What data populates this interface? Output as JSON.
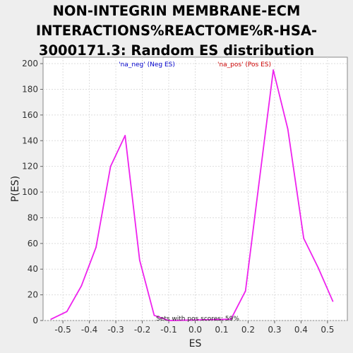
{
  "chart_data": {
    "type": "line",
    "title_lines": [
      "NON-INTEGRIN MEMBRANE-ECM",
      "INTERACTIONS%REACTOME%R-HSA-",
      "3000171.3: Random ES distribution"
    ],
    "xlabel": "ES",
    "ylabel": "P(ES)",
    "xlim": [
      -0.575,
      0.575
    ],
    "ylim": [
      0,
      205
    ],
    "xticks": [
      -0.5,
      -0.4,
      -0.3,
      -0.2,
      -0.1,
      0.0,
      0.1,
      0.2,
      0.3,
      0.4,
      0.5
    ],
    "xtick_labels": [
      "-0.5",
      "-0.4",
      "-0.3",
      "-0.2",
      "-0.1",
      "0.0",
      "0.1",
      "0.2",
      "0.3",
      "0.4",
      "0.5"
    ],
    "yticks": [
      0,
      20,
      40,
      60,
      80,
      100,
      120,
      140,
      160,
      180,
      200
    ],
    "ytick_labels": [
      "0",
      "20",
      "40",
      "60",
      "80",
      "100",
      "120",
      "140",
      "160",
      "180",
      "200"
    ],
    "grid": true,
    "legend": [
      {
        "label": "'na_neg' (Neg ES)",
        "color": "#0000cc"
      },
      {
        "label": "'na_pos' (Pos ES)",
        "color": "#cc0000"
      }
    ],
    "annotation": "Sets with pos scores: 59%",
    "series": [
      {
        "color": "#ee22ee",
        "x": [
          -0.545,
          -0.485,
          -0.43,
          -0.375,
          -0.32,
          -0.265,
          -0.21,
          -0.155,
          -0.1,
          0.135,
          0.19,
          0.24,
          0.295,
          0.35,
          0.41,
          0.465,
          0.52
        ],
        "y": [
          1,
          7,
          27,
          57,
          120,
          144,
          47,
          4,
          0,
          1,
          23,
          105,
          195,
          149,
          64,
          41,
          15
        ]
      }
    ]
  }
}
